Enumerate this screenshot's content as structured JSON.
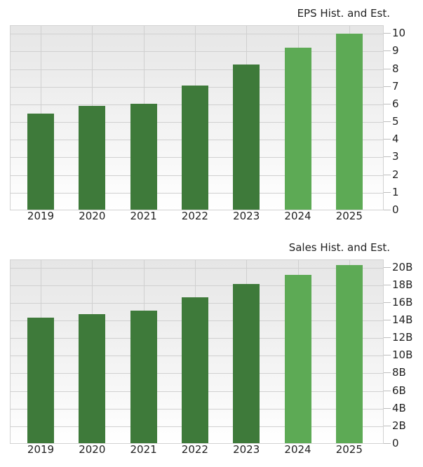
{
  "chart_data": [
    {
      "type": "bar",
      "title": "EPS Hist. and Est.",
      "xlabel": "",
      "ylabel": "",
      "categories": [
        "2019",
        "2020",
        "2021",
        "2022",
        "2023",
        "2024",
        "2025"
      ],
      "values": [
        5.44,
        5.9,
        6.02,
        7.02,
        8.24,
        9.19,
        9.98
      ],
      "estimate_flags": [
        false,
        false,
        false,
        false,
        false,
        true,
        true
      ],
      "yticks": [
        0,
        1,
        2,
        3,
        4,
        5,
        6,
        7,
        8,
        9,
        10
      ],
      "ytick_labels": [
        "0",
        "1",
        "2",
        "3",
        "4",
        "5",
        "6",
        "7",
        "8",
        "9",
        "10"
      ],
      "ylim": [
        0,
        10.45
      ],
      "grid": true,
      "legend": null,
      "axis_position": "right"
    },
    {
      "type": "bar",
      "title": "Sales Hist. and Est.",
      "xlabel": "",
      "ylabel": "",
      "categories": [
        "2019",
        "2020",
        "2021",
        "2022",
        "2023",
        "2024",
        "2025"
      ],
      "values": [
        14.26,
        14.66,
        15.07,
        16.55,
        18.08,
        19.14,
        20.2
      ],
      "units": "B",
      "estimate_flags": [
        false,
        false,
        false,
        false,
        false,
        true,
        true
      ],
      "yticks": [
        0,
        2,
        4,
        6,
        8,
        10,
        12,
        14,
        16,
        18,
        20
      ],
      "ytick_labels": [
        "0",
        "2B",
        "4B",
        "6B",
        "8B",
        "10B",
        "12B",
        "14B",
        "16B",
        "18B",
        "20B"
      ],
      "ylim": [
        0,
        20.85
      ],
      "grid": true,
      "legend": null,
      "axis_position": "right"
    }
  ],
  "colors": {
    "historical": "#3e7a3a",
    "estimate": "#5daa55"
  }
}
